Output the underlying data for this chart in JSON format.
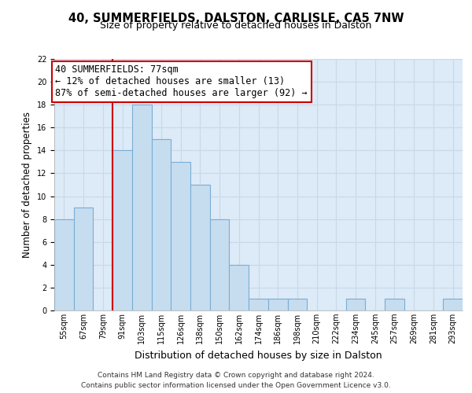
{
  "title": "40, SUMMERFIELDS, DALSTON, CARLISLE, CA5 7NW",
  "subtitle": "Size of property relative to detached houses in Dalston",
  "xlabel": "Distribution of detached houses by size in Dalston",
  "ylabel": "Number of detached properties",
  "bins": [
    "55sqm",
    "67sqm",
    "79sqm",
    "91sqm",
    "103sqm",
    "115sqm",
    "126sqm",
    "138sqm",
    "150sqm",
    "162sqm",
    "174sqm",
    "186sqm",
    "198sqm",
    "210sqm",
    "222sqm",
    "234sqm",
    "245sqm",
    "257sqm",
    "269sqm",
    "281sqm",
    "293sqm"
  ],
  "values": [
    8,
    9,
    0,
    14,
    18,
    15,
    13,
    11,
    8,
    4,
    1,
    1,
    1,
    0,
    0,
    1,
    0,
    1,
    0,
    0,
    1
  ],
  "bar_color": "#c6ddf0",
  "bar_edge_color": "#7aadd4",
  "reference_line_x": 3,
  "reference_line_color": "#cc0000",
  "annotation_line1": "40 SUMMERFIELDS: 77sqm",
  "annotation_line2": "← 12% of detached houses are smaller (13)",
  "annotation_line3": "87% of semi-detached houses are larger (92) →",
  "annotation_box_color": "#ffffff",
  "annotation_box_edge_color": "#cc0000",
  "ylim": [
    0,
    22
  ],
  "yticks": [
    0,
    2,
    4,
    6,
    8,
    10,
    12,
    14,
    16,
    18,
    20,
    22
  ],
  "footer_text": "Contains HM Land Registry data © Crown copyright and database right 2024.\nContains public sector information licensed under the Open Government Licence v3.0.",
  "bg_color": "#ffffff",
  "plot_bg_color": "#ddeaf7",
  "grid_color": "#c8d8e8",
  "title_fontsize": 10.5,
  "subtitle_fontsize": 9,
  "xlabel_fontsize": 9,
  "ylabel_fontsize": 8.5,
  "tick_fontsize": 7,
  "annotation_fontsize": 8.5,
  "footer_fontsize": 6.5
}
